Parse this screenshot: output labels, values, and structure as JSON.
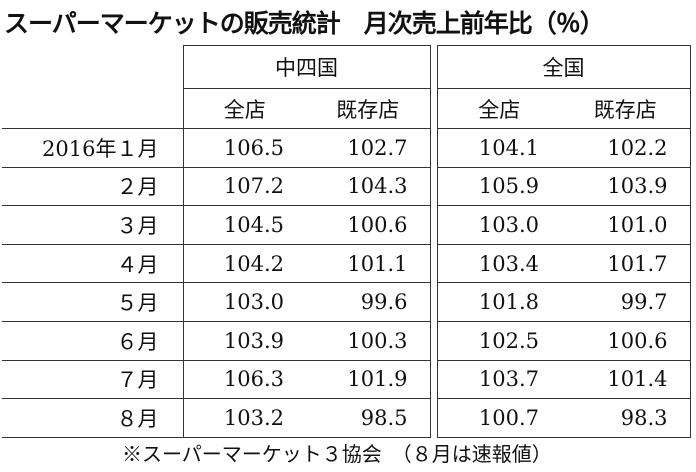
{
  "title": "スーパーマーケットの販売統計　月次売上前年比（％）",
  "groups": [
    {
      "name": "中四国",
      "columns": [
        "全店",
        "既存店"
      ]
    },
    {
      "name": "全国",
      "columns": [
        "全店",
        "既存店"
      ]
    }
  ],
  "rows": [
    {
      "label": "2016年１月",
      "values": [
        "106.5",
        "102.7",
        "104.1",
        "102.2"
      ]
    },
    {
      "label": "２月",
      "values": [
        "107.2",
        "104.3",
        "105.9",
        "103.9"
      ]
    },
    {
      "label": "３月",
      "values": [
        "104.5",
        "100.6",
        "103.0",
        "101.0"
      ]
    },
    {
      "label": "４月",
      "values": [
        "104.2",
        "101.1",
        "103.4",
        "101.7"
      ]
    },
    {
      "label": "５月",
      "values": [
        "103.0",
        "99.6",
        "101.8",
        "99.7"
      ]
    },
    {
      "label": "６月",
      "values": [
        "103.9",
        "100.3",
        "102.5",
        "100.6"
      ]
    },
    {
      "label": "７月",
      "values": [
        "106.3",
        "101.9",
        "103.7",
        "101.4"
      ]
    },
    {
      "label": "８月",
      "values": [
        "103.2",
        "98.5",
        "100.7",
        "98.3"
      ]
    }
  ],
  "footnote": "※スーパーマーケット３協会　（８月は速報値）"
}
